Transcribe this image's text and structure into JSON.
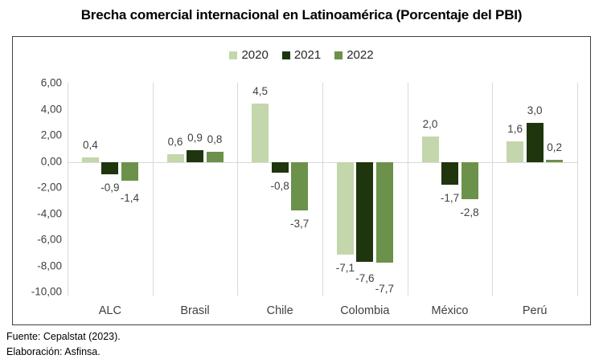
{
  "chart_data": {
    "type": "bar",
    "title": "Brecha comercial internacional en Latinoamérica (Porcentaje del PBI)",
    "categories": [
      "ALC",
      "Brasil",
      "Chile",
      "Colombia",
      "México",
      "Perú"
    ],
    "series": [
      {
        "name": "2020",
        "color": "#c4d6ac",
        "values": [
          0.4,
          0.6,
          4.5,
          -7.1,
          2.0,
          1.6
        ],
        "labels": [
          "0,4",
          "0,6",
          "4,5",
          "-7,1",
          "2,0",
          "1,6"
        ]
      },
      {
        "name": "2021",
        "color": "#1e350e",
        "values": [
          -0.9,
          0.9,
          -0.8,
          -7.6,
          -1.7,
          3.0
        ],
        "labels": [
          "-0,9",
          "0,9",
          "-0,8",
          "-7,6",
          "-1,7",
          "3,0"
        ]
      },
      {
        "name": "2022",
        "color": "#6c914a",
        "values": [
          -1.4,
          0.8,
          -3.7,
          -7.7,
          -2.8,
          0.2
        ],
        "labels": [
          "-1,4",
          "0,8",
          "-3,7",
          "-7,7",
          "-2,8",
          "0,2"
        ]
      }
    ],
    "ylim": [
      -10,
      6
    ],
    "ytick_step": 2,
    "ytick_labels": [
      "6,00",
      "4,00",
      "2,00",
      "0,00",
      "-2,00",
      "-4,00",
      "-6,00",
      "-8,00",
      "-10,00"
    ],
    "xlabel": "",
    "ylabel": "",
    "legend_position": "top-center",
    "grid": {
      "vertical_separators": true,
      "zero_line": true,
      "line_color": "#d9d9d9"
    }
  },
  "footer": {
    "line1": "Fuente: Cepalstat (2023).",
    "line2": "Elaboración: Asfinsa."
  },
  "colors": {
    "background": "#ffffff",
    "border": "#3f3f3f",
    "axis_text": "#404040",
    "title_text": "#000000"
  }
}
